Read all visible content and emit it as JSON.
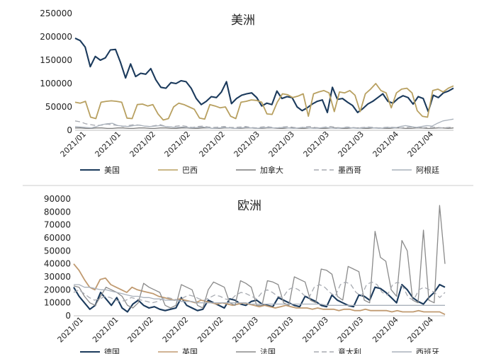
{
  "chart_data": [
    {
      "type": "line",
      "title": "美洲",
      "ylim": [
        0,
        250000
      ],
      "yticks": [
        "250000",
        "200000",
        "150000",
        "100000",
        "50000",
        "0"
      ],
      "xtick_labels": [
        "2021/01",
        "2021/01",
        "2021/02",
        "2021/02",
        "2021/02",
        "2021/03",
        "2021/03",
        "2021/03",
        "2021/03",
        "2021/04",
        "2021/04"
      ],
      "series": [
        {
          "name": "美国",
          "color": "#1b3a5c",
          "dash": "none",
          "values": [
            197000,
            192000,
            178000,
            136000,
            158000,
            150000,
            155000,
            172000,
            173000,
            145000,
            112000,
            142000,
            115000,
            122000,
            120000,
            132000,
            108000,
            92000,
            90000,
            102000,
            100000,
            106000,
            104000,
            90000,
            68000,
            55000,
            62000,
            72000,
            70000,
            82000,
            104000,
            57000,
            68000,
            75000,
            78000,
            80000,
            70000,
            52000,
            58000,
            55000,
            84000,
            68000,
            72000,
            70000,
            50000,
            42000,
            48000,
            56000,
            62000,
            65000,
            38000,
            92000,
            66000,
            68000,
            60000,
            53000,
            38000,
            46000,
            56000,
            62000,
            70000,
            78000,
            62000,
            58000,
            68000,
            74000,
            70000,
            56000,
            72000,
            68000,
            40000,
            75000,
            70000,
            80000,
            84000,
            90000
          ]
        },
        {
          "name": "巴西",
          "color": "#b8a060",
          "dash": "none",
          "values": [
            60000,
            58000,
            62000,
            28000,
            25000,
            60000,
            62000,
            63000,
            62000,
            60000,
            26000,
            25000,
            55000,
            56000,
            52000,
            55000,
            35000,
            22000,
            25000,
            50000,
            58000,
            55000,
            50000,
            45000,
            26000,
            24000,
            55000,
            52000,
            48000,
            50000,
            30000,
            25000,
            60000,
            62000,
            65000,
            64000,
            60000,
            35000,
            34000,
            60000,
            78000,
            76000,
            70000,
            73000,
            78000,
            30000,
            78000,
            82000,
            85000,
            80000,
            40000,
            82000,
            80000,
            85000,
            75000,
            40000,
            78000,
            88000,
            100000,
            85000,
            80000,
            48000,
            80000,
            88000,
            90000,
            80000,
            42000,
            30000,
            28000,
            85000,
            88000,
            82000,
            90000,
            95000
          ]
        },
        {
          "name": "加拿大",
          "color": "#7a7a7a",
          "dash": "none",
          "values": [
            5000,
            5000,
            4000,
            4000,
            5000,
            5000,
            4000,
            4000,
            5000,
            5000,
            4000,
            4000,
            5000,
            5000,
            4000,
            4000,
            5000,
            5000,
            4000,
            4000,
            5000,
            5000,
            4000,
            4000,
            5000,
            5000,
            4000,
            4000,
            5000,
            5000,
            4000,
            4000,
            5000,
            5000,
            4000,
            4000,
            5000,
            5000,
            4000,
            4000,
            5000,
            5000,
            4000,
            4000,
            5000,
            5000,
            4000,
            4000,
            5000,
            5000,
            4000,
            4000,
            5000,
            5000,
            4000,
            4000,
            5000,
            5000,
            4000,
            4000,
            5000,
            5000,
            4000,
            4000,
            5000,
            5000,
            4000,
            4000,
            5000,
            5000,
            4000,
            5000
          ]
        },
        {
          "name": "墨西哥",
          "color": "#a7aab1",
          "dash": "7,4",
          "values": [
            20000,
            18000,
            14000,
            12000,
            10000,
            11000,
            13000,
            12000,
            10000,
            8000,
            10000,
            12000,
            11000,
            9000,
            8000,
            10000,
            12000,
            8000,
            7000,
            9000,
            10000,
            8000,
            6000,
            8000,
            9000,
            7000,
            6000,
            7000,
            8000,
            6000,
            6000,
            7000,
            8000,
            6000,
            5000,
            7000,
            8000,
            6000,
            5000,
            7000,
            8000,
            6000,
            5000,
            7000,
            8000,
            6000,
            5000,
            7000,
            8000,
            6000,
            5000,
            7000,
            6000,
            5000,
            6000,
            7000,
            6000,
            5000,
            6000,
            7000,
            6000,
            5000,
            6000,
            7000,
            6000,
            5000,
            6000,
            7000,
            6000,
            5000,
            6000,
            7000
          ]
        },
        {
          "name": "阿根廷",
          "color": "#a9b1bb",
          "dash": "none",
          "values": [
            8000,
            7000,
            6000,
            5000,
            8000,
            12000,
            14000,
            15000,
            10000,
            9000,
            8000,
            10000,
            11000,
            9000,
            8000,
            9000,
            10000,
            8000,
            7000,
            6000,
            7000,
            6000,
            5000,
            6000,
            7000,
            5000,
            4000,
            5000,
            6000,
            5000,
            4000,
            5000,
            6000,
            5000,
            4000,
            5000,
            6000,
            5000,
            5000,
            6000,
            5000,
            4000,
            5000,
            6000,
            5000,
            4000,
            5000,
            6000,
            5000,
            4000,
            5000,
            6000,
            5000,
            4000,
            5000,
            6000,
            5000,
            4000,
            5000,
            6000,
            5000,
            8000,
            10000,
            8000,
            6000,
            8000,
            10000,
            9000,
            15000,
            20000,
            22000,
            24000
          ]
        }
      ]
    },
    {
      "type": "line",
      "title": "欧洲",
      "ylim": [
        0,
        90000
      ],
      "yticks": [
        "90000",
        "80000",
        "70000",
        "60000",
        "50000",
        "40000",
        "30000",
        "20000",
        "10000",
        "0"
      ],
      "xtick_labels": [
        "2021/01",
        "2021/01",
        "2021/02",
        "2021/02",
        "2021/02",
        "2021/03",
        "2021/03",
        "2021/03",
        "2021/03",
        "2021/04",
        "2021/04"
      ],
      "series": [
        {
          "name": "德国",
          "color": "#1b3a5c",
          "dash": "none",
          "values": [
            22000,
            15000,
            10000,
            5000,
            8000,
            18000,
            13000,
            8000,
            14000,
            6000,
            3000,
            9000,
            12000,
            8000,
            6000,
            7000,
            5000,
            4000,
            5000,
            6000,
            14000,
            8000,
            6000,
            4000,
            5000,
            12000,
            10000,
            8000,
            6000,
            13000,
            12000,
            9000,
            8000,
            11000,
            12000,
            9000,
            8000,
            7000,
            14000,
            12000,
            10000,
            8000,
            7000,
            15000,
            13000,
            11000,
            8000,
            7000,
            16000,
            12000,
            10000,
            8000,
            7000,
            16000,
            15000,
            12000,
            22000,
            21000,
            18000,
            14000,
            10000,
            24000,
            20000,
            14000,
            11000,
            9000,
            14000,
            18000,
            24000,
            22000
          ]
        },
        {
          "name": "英国",
          "color": "#c09a70",
          "dash": "none",
          "values": [
            40000,
            35000,
            28000,
            22000,
            20000,
            28000,
            29000,
            24000,
            22000,
            20000,
            18000,
            22000,
            20000,
            19000,
            18000,
            17000,
            15000,
            14000,
            13000,
            12000,
            13000,
            12000,
            11000,
            10000,
            12000,
            11000,
            10000,
            9000,
            10000,
            9000,
            8000,
            9000,
            10000,
            9000,
            8000,
            7000,
            8000,
            7000,
            6000,
            7000,
            8000,
            7000,
            6000,
            6000,
            6000,
            5000,
            6000,
            5000,
            5000,
            5000,
            4000,
            5000,
            5000,
            4000,
            4000,
            5000,
            4000,
            4000,
            4000,
            4000,
            3000,
            4000,
            3000,
            3000,
            3000,
            4000,
            3000,
            3000,
            3000,
            3000,
            1000
          ]
        },
        {
          "name": "法国",
          "color": "#8a8a8a",
          "dash": "none",
          "values": [
            23000,
            22000,
            15000,
            10000,
            8000,
            15000,
            22000,
            20000,
            18000,
            15000,
            8000,
            6000,
            10000,
            25000,
            22000,
            20000,
            18000,
            8000,
            6000,
            8000,
            24000,
            22000,
            20000,
            8000,
            6000,
            20000,
            26000,
            24000,
            22000,
            10000,
            8000,
            27000,
            25000,
            22000,
            8000,
            8000,
            27000,
            26000,
            24000,
            10000,
            8000,
            30000,
            28000,
            26000,
            12000,
            10000,
            36000,
            35000,
            32000,
            15000,
            12000,
            38000,
            36000,
            34000,
            12000,
            10000,
            65000,
            45000,
            42000,
            20000,
            15000,
            58000,
            50000,
            12000,
            10000,
            66000,
            12000,
            10000,
            85000,
            40000
          ]
        },
        {
          "name": "意大利",
          "color": "#a7aab1",
          "dash": "7,4",
          "values": [
            18000,
            20000,
            17000,
            14000,
            12000,
            13000,
            15000,
            14000,
            12000,
            11000,
            12000,
            14000,
            13000,
            12000,
            11000,
            10000,
            11000,
            13000,
            14000,
            13000,
            12000,
            14000,
            16000,
            15000,
            13000,
            12000,
            14000,
            16000,
            15000,
            13000,
            12000,
            16000,
            18000,
            17000,
            15000,
            13000,
            18000,
            20000,
            18000,
            15000,
            14000,
            20000,
            22000,
            20000,
            16000,
            14000,
            22000,
            24000,
            22000,
            18000,
            15000,
            24000,
            26000,
            24000,
            18000,
            15000,
            24000,
            26000,
            24000,
            18000,
            16000,
            24000,
            26000,
            22000,
            14000,
            12000,
            20000,
            22000,
            20000,
            18000,
            14000,
            18000
          ]
        },
        {
          "name": "西班牙",
          "color": "#a9b1bb",
          "dash": "none",
          "values": [
            24000,
            24000,
            22000,
            22000,
            21000,
            20000,
            20000,
            19000,
            18000,
            17000,
            16000,
            15000,
            15000,
            14000,
            14000,
            13000,
            13000,
            12000,
            12000,
            12000,
            11000,
            11000,
            11000,
            10000,
            10000,
            10000,
            10000,
            10000,
            10000,
            10000,
            10000,
            10000,
            10000,
            9000,
            9000,
            9000,
            9000,
            9000,
            9000,
            9000,
            9000,
            9000,
            9000,
            9000,
            9000,
            9000,
            9000,
            8000,
            8000,
            8000,
            8000,
            8000,
            8000,
            8000,
            8000,
            8000,
            8000,
            8000,
            8000,
            8000,
            8000,
            8000,
            8000,
            8000,
            8000,
            8000,
            8000,
            8000,
            8000,
            8000
          ]
        }
      ]
    }
  ]
}
